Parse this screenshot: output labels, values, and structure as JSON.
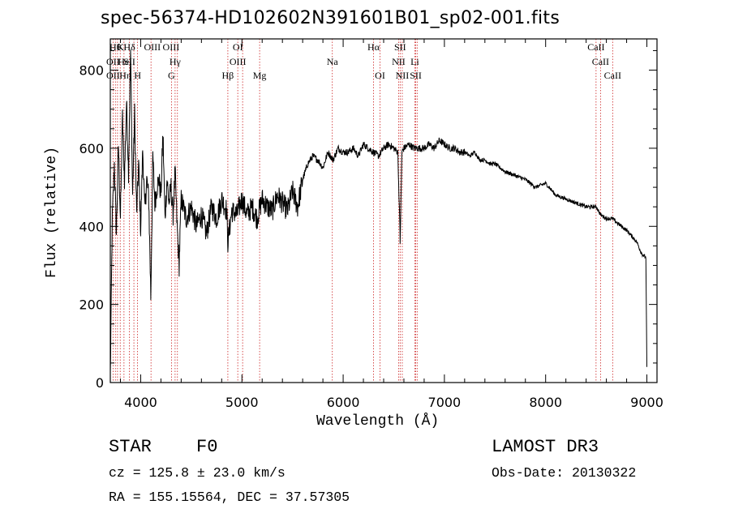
{
  "chart_data": {
    "type": "line",
    "title": "spec-56374-HD102602N391601B01_sp02-001.fits",
    "xlabel": "Wavelength (Å)",
    "ylabel": "Flux (relative)",
    "xlim": [
      3700,
      9100
    ],
    "ylim": [
      0,
      880
    ],
    "xticks": [
      4000,
      5000,
      6000,
      7000,
      8000,
      9000
    ],
    "yticks": [
      0,
      200,
      400,
      600,
      800
    ],
    "series": [
      {
        "name": "spectrum",
        "x": [
          3700,
          3720,
          3740,
          3760,
          3780,
          3800,
          3820,
          3840,
          3860,
          3880,
          3900,
          3920,
          3940,
          3960,
          3980,
          4000,
          4020,
          4040,
          4060,
          4080,
          4100,
          4120,
          4140,
          4160,
          4180,
          4200,
          4220,
          4240,
          4260,
          4280,
          4300,
          4320,
          4340,
          4360,
          4380,
          4400,
          4450,
          4500,
          4550,
          4600,
          4650,
          4700,
          4750,
          4800,
          4850,
          4861,
          4900,
          4950,
          5000,
          5050,
          5100,
          5150,
          5200,
          5250,
          5300,
          5350,
          5400,
          5450,
          5500,
          5550,
          5600,
          5650,
          5700,
          5750,
          5800,
          5850,
          5900,
          5950,
          6000,
          6050,
          6100,
          6150,
          6200,
          6250,
          6300,
          6350,
          6400,
          6450,
          6500,
          6540,
          6560,
          6563,
          6580,
          6600,
          6650,
          6700,
          6750,
          6800,
          6850,
          6900,
          6950,
          7000,
          7050,
          7100,
          7150,
          7200,
          7250,
          7300,
          7350,
          7400,
          7450,
          7500,
          7600,
          7700,
          7800,
          7900,
          8000,
          8100,
          8200,
          8300,
          8400,
          8500,
          8542,
          8600,
          8662,
          8700,
          8800,
          8900,
          8950,
          8990,
          9000
        ],
        "values": [
          20,
          420,
          560,
          380,
          610,
          420,
          680,
          520,
          720,
          540,
          850,
          480,
          690,
          430,
          560,
          390,
          600,
          440,
          520,
          470,
          220,
          580,
          460,
          500,
          520,
          480,
          640,
          420,
          520,
          460,
          500,
          430,
          540,
          400,
          300,
          470,
          420,
          450,
          400,
          430,
          380,
          450,
          420,
          470,
          440,
          360,
          440,
          430,
          470,
          430,
          450,
          420,
          470,
          450,
          440,
          480,
          460,
          440,
          490,
          450,
          520,
          560,
          580,
          570,
          550,
          590,
          570,
          600,
          590,
          590,
          600,
          580,
          610,
          600,
          590,
          580,
          600,
          610,
          600,
          590,
          400,
          360,
          590,
          600,
          610,
          600,
          600,
          600,
          610,
          600,
          620,
          610,
          600,
          600,
          590,
          590,
          580,
          590,
          570,
          570,
          560,
          560,
          540,
          530,
          520,
          500,
          510,
          480,
          470,
          460,
          450,
          450,
          430,
          420,
          420,
          410,
          390,
          360,
          330,
          320,
          40
        ]
      }
    ],
    "line_labels": [
      {
        "x": 3750,
        "row": 0,
        "text": "Hθ"
      },
      {
        "x": 3800,
        "row": 0,
        "text": "K"
      },
      {
        "x": 3889,
        "row": 0,
        "text": "Hδ"
      },
      {
        "x": 4115,
        "row": 0,
        "text": "OIII"
      },
      {
        "x": 4300,
        "row": 0,
        "text": "OIII"
      },
      {
        "x": 4960,
        "row": 0,
        "text": "OI"
      },
      {
        "x": 6300,
        "row": 0,
        "text": "Hα"
      },
      {
        "x": 6563,
        "row": 0,
        "text": "SII"
      },
      {
        "x": 8498,
        "row": 0,
        "text": "CaII"
      },
      {
        "x": 3727,
        "row": 1,
        "text": "OII"
      },
      {
        "x": 3830,
        "row": 1,
        "text": "He"
      },
      {
        "x": 3889,
        "row": 1,
        "text": "SII"
      },
      {
        "x": 4340,
        "row": 1,
        "text": "Hγ"
      },
      {
        "x": 4959,
        "row": 1,
        "text": "OIII"
      },
      {
        "x": 5893,
        "row": 1,
        "text": "Na"
      },
      {
        "x": 6548,
        "row": 1,
        "text": "NII"
      },
      {
        "x": 6708,
        "row": 1,
        "text": "Li"
      },
      {
        "x": 8542,
        "row": 1,
        "text": "CaII"
      },
      {
        "x": 3727,
        "row": 2,
        "text": "OII"
      },
      {
        "x": 3850,
        "row": 2,
        "text": "Hη"
      },
      {
        "x": 3970,
        "row": 2,
        "text": "H"
      },
      {
        "x": 4304,
        "row": 2,
        "text": "G"
      },
      {
        "x": 4861,
        "row": 2,
        "text": "Hβ"
      },
      {
        "x": 5175,
        "row": 2,
        "text": "Mg"
      },
      {
        "x": 6364,
        "row": 2,
        "text": "OI"
      },
      {
        "x": 6584,
        "row": 2,
        "text": "NII"
      },
      {
        "x": 6717,
        "row": 2,
        "text": "SII"
      },
      {
        "x": 8662,
        "row": 2,
        "text": "CaII"
      }
    ],
    "line_markers": [
      3727,
      3750,
      3771,
      3798,
      3835,
      3889,
      3933,
      3968,
      4102,
      4304,
      4340,
      4363,
      4861,
      4959,
      5007,
      5175,
      5893,
      6300,
      6364,
      6548,
      6563,
      6584,
      6708,
      6717,
      6731,
      8498,
      8542,
      8662
    ]
  },
  "info": {
    "object_type": "STAR",
    "subclass": "F0",
    "survey": "LAMOST DR3",
    "redshift": "cz = 125.8 ± 23.0 km/s",
    "obs_date": "Obs-Date: 20130322",
    "coords": "RA = 155.15564, DEC =  37.57305"
  },
  "colors": {
    "spectrum": "#000000",
    "marker": "#cc2222"
  }
}
